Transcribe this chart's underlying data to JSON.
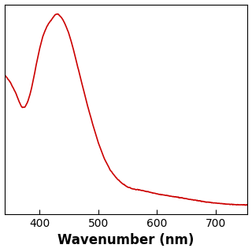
{
  "title": "",
  "xlabel": "Wavenumber (nm)",
  "ylabel": "",
  "line_color": "#cc0000",
  "line_width": 1.2,
  "background_color": "#ffffff",
  "xlim": [
    340,
    755
  ],
  "ylim": [
    0.0,
    1.08
  ],
  "x_ticks": [
    400,
    500,
    600,
    700
  ],
  "xlabel_fontsize": 12,
  "xlabel_fontweight": "bold",
  "tick_labelsize": 10,
  "curve_x": [
    340,
    350,
    360,
    365,
    370,
    375,
    380,
    385,
    390,
    395,
    400,
    405,
    410,
    415,
    420,
    425,
    427,
    430,
    432,
    435,
    438,
    440,
    445,
    450,
    455,
    460,
    465,
    470,
    480,
    490,
    500,
    510,
    520,
    530,
    540,
    550,
    560,
    570,
    575,
    580,
    585,
    590,
    595,
    600,
    605,
    610,
    620,
    630,
    640,
    650,
    660,
    670,
    680,
    690,
    700,
    710,
    720,
    730,
    740,
    750,
    755
  ],
  "curve_y": [
    0.72,
    0.68,
    0.62,
    0.58,
    0.55,
    0.55,
    0.58,
    0.63,
    0.7,
    0.78,
    0.85,
    0.91,
    0.95,
    0.98,
    1.0,
    1.02,
    1.03,
    1.03,
    1.03,
    1.02,
    1.01,
    1.0,
    0.97,
    0.93,
    0.88,
    0.82,
    0.76,
    0.7,
    0.58,
    0.47,
    0.37,
    0.29,
    0.23,
    0.19,
    0.16,
    0.14,
    0.13,
    0.125,
    0.122,
    0.119,
    0.116,
    0.112,
    0.108,
    0.105,
    0.102,
    0.1,
    0.095,
    0.09,
    0.085,
    0.08,
    0.075,
    0.07,
    0.065,
    0.061,
    0.058,
    0.055,
    0.052,
    0.05,
    0.049,
    0.048,
    0.048
  ]
}
